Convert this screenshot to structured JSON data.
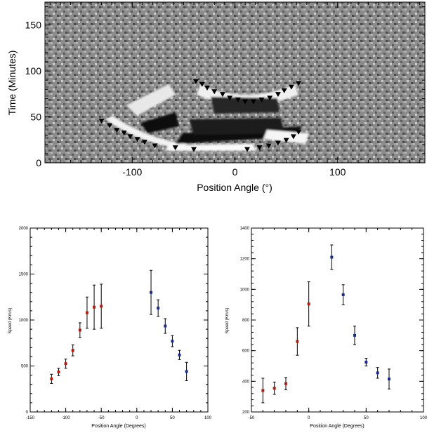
{
  "chart_data": [
    {
      "type": "heatmap",
      "xlabel": "Position Angle (°)",
      "ylabel": "Time (Minutes)",
      "xlim": [
        -185,
        185
      ],
      "ylim": [
        0,
        175
      ],
      "x_ticks": [
        -100,
        0,
        100
      ],
      "y_ticks": [
        0,
        50,
        100,
        150
      ],
      "markers": {
        "shape": "down-triangle",
        "color": "#000000",
        "front_left_x": [
          -130,
          -122,
          -115,
          -108,
          -102,
          -95,
          -88,
          -78
        ],
        "front_left_y": [
          45,
          40,
          35,
          32,
          28,
          25,
          22,
          18
        ],
        "front_bottom_x": [
          -58,
          -40,
          12,
          24,
          33,
          42,
          50,
          57,
          62
        ],
        "front_bottom_y": [
          16,
          14,
          14,
          16,
          18,
          21,
          24,
          28,
          33
        ],
        "front_upper_x": [
          -38,
          -32,
          -27,
          -20,
          -12,
          -5,
          3,
          10,
          18,
          26,
          34,
          42,
          48,
          55,
          62
        ],
        "front_upper_y": [
          88,
          85,
          81,
          77,
          74,
          70,
          68,
          66,
          66,
          68,
          70,
          74,
          78,
          82,
          86
        ]
      }
    },
    {
      "type": "scatter",
      "xlabel": "Position Angle (Degrees)",
      "ylabel": "Speed (Km/s)",
      "xlim": [
        -150,
        100
      ],
      "ylim": [
        0,
        2000
      ],
      "x_ticks": [
        -150,
        -100,
        -50,
        0,
        50,
        100
      ],
      "y_ticks": [
        0,
        500,
        1000,
        1500,
        2000
      ],
      "series": [
        {
          "color": "#b01e10",
          "x": [
            -120,
            -110,
            -100,
            -90,
            -80,
            -70,
            -60,
            -50
          ],
          "y": [
            360,
            435,
            525,
            670,
            890,
            1080,
            1140,
            1150
          ],
          "err": [
            50,
            40,
            50,
            60,
            80,
            170,
            240,
            240
          ]
        },
        {
          "color": "#1a2d8a",
          "x": [
            20,
            30,
            40,
            50,
            60,
            70
          ],
          "y": [
            1300,
            1130,
            935,
            770,
            620,
            440
          ],
          "err": [
            240,
            90,
            80,
            60,
            50,
            100
          ]
        }
      ]
    },
    {
      "type": "scatter",
      "xlabel": "Position Angle (Degrees)",
      "ylabel": "Speed (Km/s)",
      "xlim": [
        -50,
        100
      ],
      "ylim": [
        200,
        1400
      ],
      "x_ticks": [
        -50,
        0,
        50,
        100
      ],
      "y_ticks": [
        200,
        400,
        600,
        800,
        1000,
        1200,
        1400
      ],
      "series": [
        {
          "color": "#b01e10",
          "x": [
            -40,
            -30,
            -20,
            -10,
            0
          ],
          "y": [
            340,
            355,
            385,
            660,
            905
          ],
          "err": [
            80,
            40,
            40,
            90,
            145
          ]
        },
        {
          "color": "#1a2d8a",
          "x": [
            20,
            30,
            40,
            50,
            60,
            70
          ],
          "y": [
            1210,
            965,
            700,
            525,
            455,
            415
          ],
          "err": [
            80,
            65,
            60,
            25,
            35,
            65
          ]
        }
      ]
    }
  ]
}
